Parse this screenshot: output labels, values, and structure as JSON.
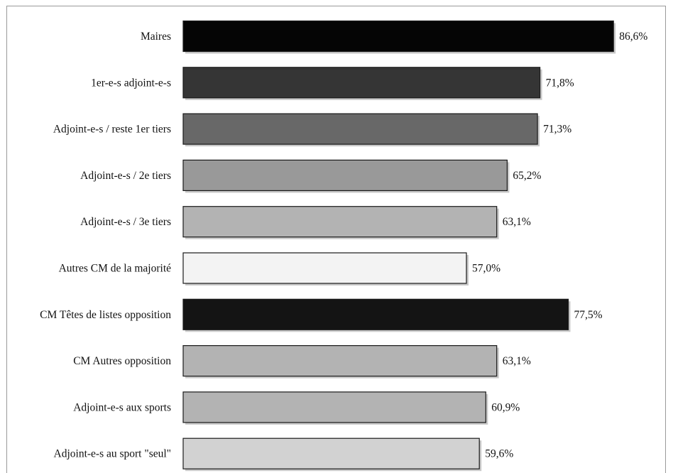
{
  "chart_data": {
    "type": "bar",
    "orientation": "horizontal",
    "categories": [
      "Maires",
      "1er-e-s adjoint-e-s",
      "Adjoint-e-s / reste 1er tiers",
      "Adjoint-e-s / 2e tiers",
      "Adjoint-e-s / 3e tiers",
      "Autres CM de la majorité",
      "CM Têtes de listes opposition",
      "CM Autres opposition",
      "Adjoint-e-s aux sports",
      "Adjoint-e-s au sport \"seul\""
    ],
    "values": [
      86.6,
      71.8,
      71.3,
      65.2,
      63.1,
      57.0,
      77.5,
      63.1,
      60.9,
      59.6
    ],
    "value_labels": [
      "86,6%",
      "71,8%",
      "71,3%",
      "65,2%",
      "63,1%",
      "57,0%",
      "77,5%",
      "63,1%",
      "60,9%",
      "59,6%"
    ],
    "bar_colors": [
      "#050505",
      "#353535",
      "#686868",
      "#999999",
      "#b3b3b3",
      "#f3f3f3",
      "#141414",
      "#b3b3b3",
      "#b3b3b3",
      "#d2d2d2"
    ],
    "xlim": [
      0,
      100
    ],
    "grid": false,
    "legend": "none",
    "title": "",
    "xlabel": "",
    "ylabel": ""
  }
}
